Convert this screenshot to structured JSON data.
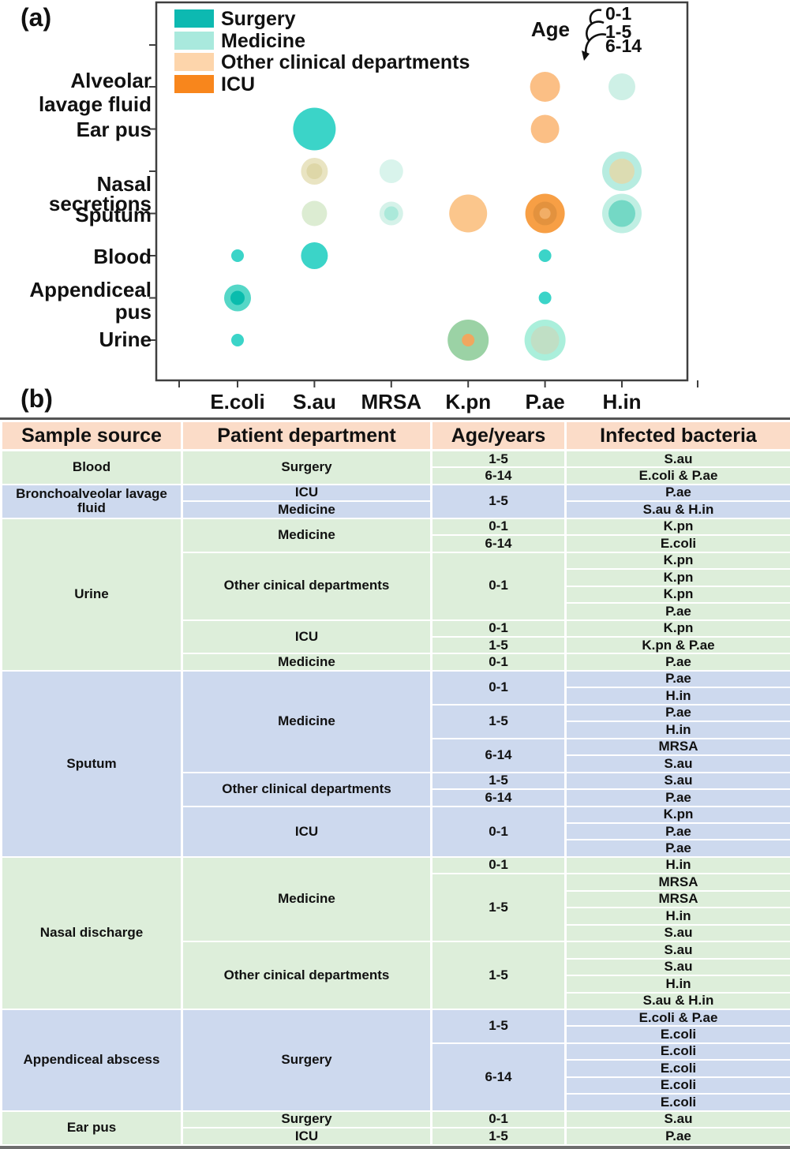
{
  "panel_a_label": "(a)",
  "panel_b_label": "(b)",
  "chart_data": {
    "type": "bubble",
    "x_categories": [
      "E.coli",
      "S.au",
      "MRSA",
      "K.pn",
      "P.ae",
      "H.in"
    ],
    "y_categories": [
      "Alveolar lavage fluid",
      "Ear pus",
      "Nasal secretions",
      "Sputum",
      "Blood",
      "Appendiceal pus",
      "Urine"
    ],
    "y_tick_lines": [
      [
        "Alveolar",
        "lavage fluid"
      ],
      [
        "Ear pus"
      ],
      [
        "Nasal",
        "secretions"
      ],
      [
        "Sputum"
      ],
      [
        "Blood"
      ],
      [
        "Appendiceal",
        "pus"
      ],
      [
        "Urine"
      ]
    ],
    "legend": {
      "items": [
        {
          "label": "Surgery",
          "color": "#0db9b1"
        },
        {
          "label": "Medicine",
          "color": "#a9e9dd"
        },
        {
          "label": "Other clinical departments",
          "color": "#fdd5ab"
        },
        {
          "label": "ICU",
          "color": "#f8861c"
        }
      ]
    },
    "size_legend": {
      "title": "Age",
      "items": [
        "0-1",
        "1-5",
        "6-14"
      ]
    },
    "bubbles": [
      {
        "x": "P.ae",
        "y": "Alveolar lavage fluid",
        "layers": [
          {
            "r": 19,
            "color": "#fbbf85"
          }
        ]
      },
      {
        "x": "H.in",
        "y": "Alveolar lavage fluid",
        "layers": [
          {
            "r": 17,
            "color": "#cef0e6"
          }
        ]
      },
      {
        "x": "S.au",
        "y": "Ear pus",
        "layers": [
          {
            "r": 27,
            "color": "#3bd4c8"
          }
        ]
      },
      {
        "x": "P.ae",
        "y": "Ear pus",
        "layers": [
          {
            "r": 18,
            "color": "#fbbf85"
          }
        ]
      },
      {
        "x": "S.au",
        "y": "Nasal secretions",
        "layers": [
          {
            "r": 17,
            "color": "#e9e4c2"
          },
          {
            "r": 10,
            "color": "#ded7a8"
          }
        ]
      },
      {
        "x": "MRSA",
        "y": "Nasal secretions",
        "layers": [
          {
            "r": 15,
            "color": "#d9f4ec"
          }
        ]
      },
      {
        "x": "H.in",
        "y": "Nasal secretions",
        "layers": [
          {
            "r": 25,
            "color": "#b7ece0"
          },
          {
            "r": 16,
            "color": "#dcdcb2"
          }
        ]
      },
      {
        "x": "S.au",
        "y": "Sputum",
        "layers": [
          {
            "r": 16,
            "color": "#dcecd2"
          }
        ]
      },
      {
        "x": "MRSA",
        "y": "Sputum",
        "layers": [
          {
            "r": 15,
            "color": "#d5f2e9"
          },
          {
            "r": 9,
            "color": "#abe9da"
          }
        ]
      },
      {
        "x": "K.pn",
        "y": "Sputum",
        "layers": [
          {
            "r": 24,
            "color": "#fbc68c"
          }
        ]
      },
      {
        "x": "P.ae",
        "y": "Sputum",
        "layers": [
          {
            "r": 25,
            "color": "#f79f45"
          },
          {
            "r": 15,
            "color": "#e3923e"
          },
          {
            "r": 7,
            "color": "#f2ae66"
          }
        ]
      },
      {
        "x": "H.in",
        "y": "Sputum",
        "layers": [
          {
            "r": 25,
            "color": "#c0efe3"
          },
          {
            "r": 17,
            "color": "#74d8c5"
          }
        ]
      },
      {
        "x": "E.coli",
        "y": "Blood",
        "layers": [
          {
            "r": 8,
            "color": "#3bd4c8"
          }
        ]
      },
      {
        "x": "S.au",
        "y": "Blood",
        "layers": [
          {
            "r": 17,
            "color": "#3bd4c8"
          }
        ]
      },
      {
        "x": "P.ae",
        "y": "Blood",
        "layers": [
          {
            "r": 8,
            "color": "#3bd4c8"
          }
        ]
      },
      {
        "x": "E.coli",
        "y": "Appendiceal pus",
        "layers": [
          {
            "r": 17,
            "color": "#55d7c7"
          },
          {
            "r": 9,
            "color": "#0abcad"
          }
        ]
      },
      {
        "x": "P.ae",
        "y": "Appendiceal pus",
        "layers": [
          {
            "r": 8,
            "color": "#3bd4c8"
          }
        ]
      },
      {
        "x": "E.coli",
        "y": "Urine",
        "layers": [
          {
            "r": 8,
            "color": "#3bd4c8"
          }
        ]
      },
      {
        "x": "K.pn",
        "y": "Urine",
        "layers": [
          {
            "r": 26,
            "color": "#9bd2a5"
          },
          {
            "r": 8,
            "color": "#f0a75f"
          }
        ]
      },
      {
        "x": "P.ae",
        "y": "Urine",
        "layers": [
          {
            "r": 26,
            "color": "#aaefdb"
          },
          {
            "r": 18,
            "color": "#c0dfc5"
          }
        ]
      }
    ]
  },
  "table": {
    "headers": [
      "Sample source",
      "Patient department",
      "Age/years",
      "Infected bacteria"
    ],
    "header_bg": "#fbdcc8",
    "row_colors": {
      "green": "#ddeeda",
      "blue": "#cdd9ee"
    },
    "rows": [
      {
        "bg": "green",
        "cells": [
          {
            "t": "Blood",
            "rs": 2
          },
          {
            "t": "Surgery",
            "rs": 2
          },
          {
            "t": "1-5"
          },
          {
            "t": "S.au"
          }
        ]
      },
      {
        "bg": "green",
        "cells": [
          {
            "t": "6-14"
          },
          {
            "t": "E.coli & P.ae"
          }
        ]
      },
      {
        "bg": "blue",
        "cells": [
          {
            "t": "Bronchoalveolar lavage fluid",
            "rs": 2
          },
          {
            "t": "ICU"
          },
          {
            "t": "1-5",
            "rs": 2
          },
          {
            "t": "P.ae"
          }
        ]
      },
      {
        "bg": "blue",
        "cells": [
          {
            "t": "Medicine"
          },
          {
            "t": "S.au & H.in"
          }
        ]
      },
      {
        "bg": "green",
        "cells": [
          {
            "t": "Urine",
            "rs": 9
          },
          {
            "t": "Medicine",
            "rs": 2
          },
          {
            "t": "0-1"
          },
          {
            "t": "K.pn"
          }
        ]
      },
      {
        "bg": "green",
        "cells": [
          {
            "t": "6-14"
          },
          {
            "t": "E.coli"
          }
        ]
      },
      {
        "bg": "green",
        "cells": [
          {
            "t": "Other cinical departments",
            "rs": 4
          },
          {
            "t": "0-1",
            "rs": 4
          },
          {
            "t": "K.pn"
          }
        ]
      },
      {
        "bg": "green",
        "cells": [
          {
            "t": "K.pn"
          }
        ]
      },
      {
        "bg": "green",
        "cells": [
          {
            "t": "K.pn"
          }
        ]
      },
      {
        "bg": "green",
        "cells": [
          {
            "t": "P.ae"
          }
        ]
      },
      {
        "bg": "green",
        "cells": [
          {
            "t": "ICU",
            "rs": 2
          },
          {
            "t": "0-1"
          },
          {
            "t": "K.pn"
          }
        ]
      },
      {
        "bg": "green",
        "cells": [
          {
            "t": "1-5"
          },
          {
            "t": "K.pn & P.ae"
          }
        ]
      },
      {
        "bg": "green",
        "cells": [
          {
            "t": "Medicine"
          },
          {
            "t": "0-1"
          },
          {
            "t": "P.ae"
          }
        ]
      },
      {
        "bg": "blue",
        "cells": [
          {
            "t": "Sputum",
            "rs": 11
          },
          {
            "t": "Medicine",
            "rs": 6
          },
          {
            "t": "0-1",
            "rs": 2
          },
          {
            "t": "P.ae"
          }
        ]
      },
      {
        "bg": "blue",
        "cells": [
          {
            "t": "H.in"
          }
        ]
      },
      {
        "bg": "blue",
        "cells": [
          {
            "t": "1-5",
            "rs": 2
          },
          {
            "t": "P.ae"
          }
        ]
      },
      {
        "bg": "blue",
        "cells": [
          {
            "t": "H.in"
          }
        ]
      },
      {
        "bg": "blue",
        "cells": [
          {
            "t": "6-14",
            "rs": 2
          },
          {
            "t": "MRSA"
          }
        ]
      },
      {
        "bg": "blue",
        "cells": [
          {
            "t": "S.au"
          }
        ]
      },
      {
        "bg": "blue",
        "cells": [
          {
            "t": "Other clinical departments",
            "rs": 2
          },
          {
            "t": "1-5"
          },
          {
            "t": "S.au"
          }
        ]
      },
      {
        "bg": "blue",
        "cells": [
          {
            "t": "6-14"
          },
          {
            "t": "P.ae"
          }
        ]
      },
      {
        "bg": "blue",
        "cells": [
          {
            "t": "ICU",
            "rs": 3
          },
          {
            "t": "0-1",
            "rs": 3
          },
          {
            "t": "K.pn"
          }
        ]
      },
      {
        "bg": "blue",
        "cells": [
          {
            "t": "P.ae"
          }
        ]
      },
      {
        "bg": "blue",
        "cells": [
          {
            "t": "P.ae"
          }
        ]
      },
      {
        "bg": "green",
        "cells": [
          {
            "t": "Nasal discharge",
            "rs": 9
          },
          {
            "t": "Medicine",
            "rs": 5
          },
          {
            "t": "0-1"
          },
          {
            "t": "H.in"
          }
        ]
      },
      {
        "bg": "green",
        "cells": [
          {
            "t": "1-5",
            "rs": 4
          },
          {
            "t": "MRSA"
          }
        ]
      },
      {
        "bg": "green",
        "cells": [
          {
            "t": "MRSA"
          }
        ]
      },
      {
        "bg": "green",
        "cells": [
          {
            "t": "H.in"
          }
        ]
      },
      {
        "bg": "green",
        "cells": [
          {
            "t": "S.au"
          }
        ]
      },
      {
        "bg": "green",
        "cells": [
          {
            "t": "Other cinical departments",
            "rs": 4
          },
          {
            "t": "1-5",
            "rs": 4
          },
          {
            "t": "S.au"
          }
        ]
      },
      {
        "bg": "green",
        "cells": [
          {
            "t": "S.au"
          }
        ]
      },
      {
        "bg": "green",
        "cells": [
          {
            "t": "H.in"
          }
        ]
      },
      {
        "bg": "green",
        "cells": [
          {
            "t": "S.au & H.in"
          }
        ]
      },
      {
        "bg": "blue",
        "cells": [
          {
            "t": "Appendiceal abscess",
            "rs": 6
          },
          {
            "t": "Surgery",
            "rs": 6
          },
          {
            "t": "1-5",
            "rs": 2
          },
          {
            "t": "E.coli & P.ae"
          }
        ]
      },
      {
        "bg": "blue",
        "cells": [
          {
            "t": "E.coli"
          }
        ]
      },
      {
        "bg": "blue",
        "cells": [
          {
            "t": "6-14",
            "rs": 4
          },
          {
            "t": "E.coli"
          }
        ]
      },
      {
        "bg": "blue",
        "cells": [
          {
            "t": "E.coli"
          }
        ]
      },
      {
        "bg": "blue",
        "cells": [
          {
            "t": "E.coli"
          }
        ]
      },
      {
        "bg": "blue",
        "cells": [
          {
            "t": "E.coli"
          }
        ]
      },
      {
        "bg": "green",
        "cells": [
          {
            "t": "Ear pus",
            "rs": 2
          },
          {
            "t": "Surgery"
          },
          {
            "t": "0-1"
          },
          {
            "t": "S.au"
          }
        ]
      },
      {
        "bg": "green",
        "cells": [
          {
            "t": "ICU"
          },
          {
            "t": "1-5"
          },
          {
            "t": "P.ae"
          }
        ]
      }
    ]
  }
}
